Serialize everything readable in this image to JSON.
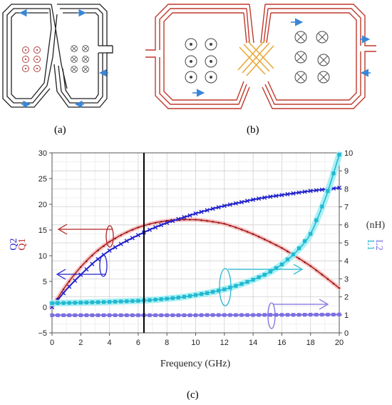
{
  "captions": {
    "a": "(a)",
    "b": "(b)",
    "c": "(c)"
  },
  "colors": {
    "coil_a": "#222222",
    "coil_b": "#c0392b",
    "crossover_b": "#e8a93a",
    "current_arrow": "#3a86d6",
    "Q1": "#b22222",
    "Q2": "#2222cc",
    "L1": "#22b8d0",
    "L2": "#7b6fe0",
    "L1_glow": "#9ff0f4",
    "Q1_glow": "#f6c0c0"
  },
  "chart_data": {
    "type": "line",
    "title": "",
    "xlabel": "Frequency (GHz)",
    "ylabel_left": [
      "Q2",
      "Q1"
    ],
    "ylabel_right_unit": "(nH)",
    "ylabel_right": [
      "L2",
      "L1"
    ],
    "xlim": [
      0,
      20
    ],
    "ylim_left": [
      -5,
      30
    ],
    "ylim_right": [
      0,
      10
    ],
    "x_ticks": [
      "0",
      "2",
      "4",
      "6",
      "8",
      "10",
      "12",
      "14",
      "16",
      "18",
      "20"
    ],
    "y_left_ticks": [
      "−5",
      "0",
      "5",
      "10",
      "15",
      "20",
      "25",
      "30"
    ],
    "y_right_ticks": [
      "0",
      "1",
      "2",
      "3",
      "4",
      "5",
      "6",
      "7",
      "8",
      "9",
      "10"
    ],
    "grid": true,
    "marker_line_x": 6.4,
    "series": [
      {
        "name": "Q1",
        "axis": "left",
        "marker": "dot",
        "x": [
          0,
          1,
          2,
          3,
          4,
          5,
          6,
          7,
          8,
          9,
          10,
          11,
          12,
          13,
          14,
          15,
          16,
          17,
          18,
          19,
          20
        ],
        "values": [
          0,
          4.3,
          7.8,
          10.6,
          12.7,
          14.3,
          15.5,
          16.3,
          16.8,
          17.0,
          17.0,
          16.7,
          16.2,
          15.3,
          14.2,
          12.9,
          11.5,
          9.8,
          8.0,
          5.9,
          3.7
        ]
      },
      {
        "name": "Q2",
        "axis": "left",
        "marker": "x",
        "x": [
          0,
          1,
          2,
          3,
          4,
          5,
          6,
          7,
          8,
          9,
          10,
          11,
          12,
          13,
          14,
          15,
          16,
          17,
          18,
          19,
          20
        ],
        "values": [
          0,
          3.4,
          6.3,
          8.9,
          11.0,
          12.6,
          14.0,
          15.3,
          16.4,
          17.3,
          18.2,
          19.0,
          19.7,
          20.3,
          20.9,
          21.4,
          21.8,
          22.2,
          22.6,
          22.9,
          23.2
        ]
      },
      {
        "name": "L1",
        "axis": "right",
        "marker": "square",
        "x": [
          0,
          1,
          2,
          3,
          4,
          5,
          6,
          7,
          8,
          9,
          10,
          11,
          12,
          13,
          14,
          15,
          16,
          17,
          18,
          19,
          19.5,
          20
        ],
        "values": [
          1.65,
          1.66,
          1.68,
          1.7,
          1.72,
          1.75,
          1.78,
          1.83,
          1.9,
          1.98,
          2.1,
          2.24,
          2.42,
          2.66,
          2.95,
          3.3,
          3.8,
          4.5,
          5.5,
          7.4,
          8.6,
          9.9
        ]
      },
      {
        "name": "L2",
        "axis": "right",
        "marker": "square",
        "x": [
          0,
          1,
          2,
          3,
          4,
          5,
          6,
          7,
          8,
          9,
          10,
          11,
          12,
          13,
          14,
          15,
          16,
          17,
          18,
          19,
          20
        ],
        "values": [
          0.98,
          0.98,
          0.98,
          0.98,
          0.98,
          0.98,
          0.98,
          0.98,
          0.98,
          0.98,
          0.98,
          0.99,
          0.99,
          0.99,
          0.99,
          1.0,
          1.0,
          1.0,
          1.01,
          1.01,
          1.02
        ]
      }
    ]
  }
}
